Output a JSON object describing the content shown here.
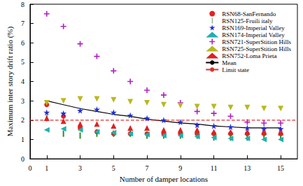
{
  "chart_data": {
    "type": "scatter",
    "x_label": "Number of damper locations",
    "y_label": "Maximum inter story drift ratio (%)",
    "x": [
      1,
      2,
      3,
      4,
      5,
      6,
      7,
      8,
      9,
      10,
      11,
      12,
      13,
      14,
      15
    ],
    "xlim": [
      0,
      16
    ],
    "xticks": [
      0,
      1,
      3,
      5,
      7,
      9,
      11,
      13,
      15
    ],
    "ylim": [
      0,
      8
    ],
    "yticks": [
      0,
      1,
      2,
      3,
      4,
      5,
      6,
      7,
      8
    ],
    "grid": false,
    "legend": "upper right",
    "series": [
      {
        "name": "RSN68-SanFernando",
        "type": "scatter",
        "marker": "circle",
        "color": "#e8201f",
        "values": [
          2.8,
          2.2,
          1.6,
          1.4,
          1.3,
          1.3,
          1.3,
          1.3,
          1.3,
          1.3,
          1.3,
          1.3,
          1.3,
          1.3,
          1.3
        ]
      },
      {
        "name": "RSN125-Fruili italy",
        "type": "scatter",
        "marker": "vline",
        "color": "#2e8b2e",
        "values": [
          2.1,
          1.3,
          1.2,
          1.3,
          1.3,
          1.3,
          1.2,
          1.2,
          1.2,
          1.2,
          1.1,
          1.1,
          1.1,
          1.1,
          1.1
        ]
      },
      {
        "name": "RSN169-Imperial Valley",
        "type": "scatter",
        "marker": "star",
        "color": "#1f2fd0",
        "values": [
          2.4,
          2.35,
          2.5,
          2.55,
          2.4,
          2.25,
          2.1,
          2.0,
          1.9,
          1.75,
          1.7,
          1.65,
          1.6,
          1.55,
          1.55
        ]
      },
      {
        "name": "RSN174-Imperial Valley",
        "type": "scatter",
        "marker": "triangle-left",
        "color": "#20b0b0",
        "values": [
          1.5,
          1.55,
          1.5,
          1.4,
          1.35,
          1.3,
          1.25,
          1.2,
          1.2,
          1.15,
          1.1,
          1.05,
          1.05,
          1.0,
          1.0
        ]
      },
      {
        "name": "RSN721-SuperStition Hills",
        "type": "scatter",
        "marker": "plus",
        "color": "#b020c0",
        "values": [
          7.5,
          6.85,
          5.95,
          5.3,
          4.55,
          4.0,
          3.55,
          3.3,
          2.9,
          2.45,
          2.35,
          2.2,
          1.9,
          1.85,
          1.85
        ]
      },
      {
        "name": "RSN725-SuperStition Hills",
        "type": "scatter",
        "marker": "triangle-down",
        "color": "#b8b820",
        "values": [
          2.9,
          3.0,
          3.1,
          3.1,
          3.05,
          2.95,
          2.9,
          2.8,
          2.75,
          2.7,
          2.7,
          2.65,
          2.65,
          2.6,
          2.6
        ]
      },
      {
        "name": "RSN752-Loma Prieta",
        "type": "scatter",
        "marker": "triangle",
        "color": "#e02020",
        "values": [
          2.1,
          1.95,
          1.8,
          1.8,
          1.7,
          1.6,
          1.6,
          1.5,
          1.5,
          1.5,
          1.4,
          1.4,
          1.4,
          1.4,
          1.35
        ]
      },
      {
        "name": "Mean",
        "type": "line",
        "line_style": "solid",
        "color": "#000000",
        "values": [
          3.0,
          2.8,
          2.6,
          2.45,
          2.3,
          2.2,
          2.05,
          1.95,
          1.85,
          1.8,
          1.7,
          1.65,
          1.6,
          1.6,
          1.6
        ]
      },
      {
        "name": "Limit state",
        "type": "line",
        "line_style": "dashed",
        "color": "#e03030",
        "x": [
          0,
          16
        ],
        "values": [
          2,
          2
        ]
      }
    ]
  }
}
